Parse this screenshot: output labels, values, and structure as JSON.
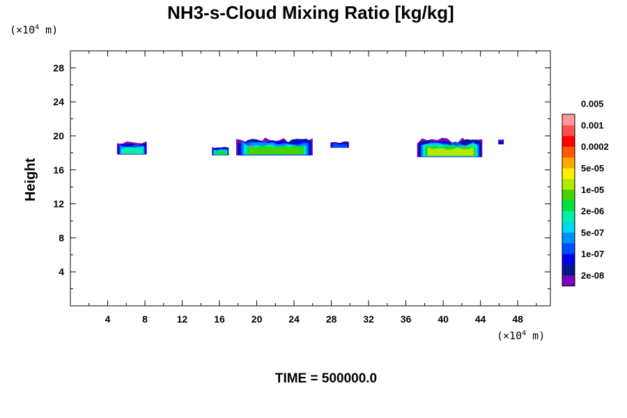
{
  "chart_data": {
    "type": "heatmap",
    "title": "NH3-s-Cloud Mixing Ratio [kg/kg]",
    "ylabel": "Height",
    "x_unit": {
      "prefix": "(×10",
      "exponent": "4",
      "suffix": " m)"
    },
    "y_unit": {
      "prefix": "(×10",
      "exponent": "4",
      "suffix": " m)"
    },
    "xlim": [
      0,
      51.5
    ],
    "ylim": [
      0,
      30
    ],
    "x_ticks": [
      4,
      8,
      12,
      16,
      20,
      24,
      28,
      32,
      36,
      40,
      44,
      48
    ],
    "y_ticks": [
      4,
      8,
      12,
      16,
      20,
      24,
      28
    ],
    "x_tick_labels": [
      "4",
      "8",
      "12",
      "16",
      "20",
      "24",
      "28",
      "32",
      "36",
      "40",
      "44",
      "48"
    ],
    "y_tick_labels": [
      "4",
      "8",
      "12",
      "16",
      "20",
      "24",
      "28"
    ],
    "colorbar": {
      "colors": [
        "#7f00bf",
        "#001a8c",
        "#0000e6",
        "#0050ff",
        "#0090ff",
        "#00d8f0",
        "#00f0a8",
        "#00e040",
        "#44d400",
        "#b4ea00",
        "#ffee00",
        "#ffa800",
        "#ff5a00",
        "#ff0000",
        "#ff5050",
        "#ff9898"
      ],
      "labels": [
        "2e-08",
        "1e-07",
        "5e-07",
        "2e-06",
        "1e-05",
        "5e-05",
        "0.0002",
        "0.001",
        "0.005"
      ]
    },
    "regions": [
      {
        "x": [
          5.0,
          8.2
        ],
        "y": [
          17.8,
          19.4
        ],
        "max_level": 6
      },
      {
        "x": [
          15.2,
          17.0
        ],
        "y": [
          17.7,
          18.8
        ],
        "max_level": 7
      },
      {
        "x": [
          17.8,
          26.0
        ],
        "y": [
          17.7,
          19.8
        ],
        "max_level": 8
      },
      {
        "x": [
          27.9,
          29.9
        ],
        "y": [
          18.6,
          19.4
        ],
        "max_level": 3
      },
      {
        "x": [
          37.2,
          44.2
        ],
        "y": [
          17.5,
          19.8
        ],
        "max_level": 9
      },
      {
        "x": [
          45.9,
          46.5
        ],
        "y": [
          19.0,
          19.6
        ],
        "max_level": 2
      }
    ]
  },
  "footer": {
    "time_label": "TIME = 500000.0"
  }
}
